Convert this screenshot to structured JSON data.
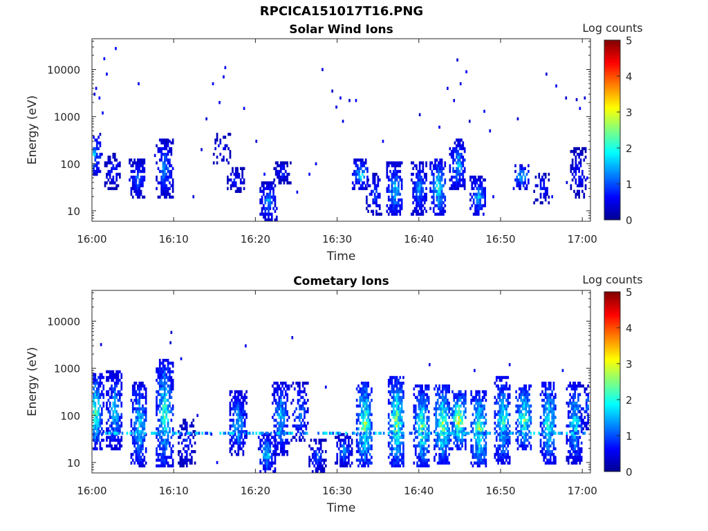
{
  "figure": {
    "title": "RPCICA151017T16.PNG"
  },
  "colormap": {
    "name": "jet",
    "stops": [
      "#00008f",
      "#0000ff",
      "#0080ff",
      "#00ffff",
      "#80ff80",
      "#ffff00",
      "#ff8000",
      "#ff0000",
      "#800000"
    ]
  },
  "chart_data": [
    {
      "type": "heatmap",
      "title": "Solar Wind Ions",
      "xlabel": "Time",
      "ylabel": "Energy (eV)",
      "x_tick_labels": [
        "16:00",
        "16:10",
        "16:20",
        "16:30",
        "16:40",
        "16:50",
        "17:00"
      ],
      "x_ticks_minutes": [
        0,
        10,
        20,
        30,
        40,
        50,
        60
      ],
      "xlim_minutes": [
        0,
        61
      ],
      "y_scale": "log",
      "y_tick_values": [
        10,
        100,
        1000,
        10000
      ],
      "y_tick_labels": [
        "10",
        "100",
        "1000",
        "10000"
      ],
      "ylim": [
        6,
        45000
      ],
      "colorbar": {
        "label": "Log counts",
        "range": [
          0,
          5
        ],
        "ticks": [
          0,
          1,
          2,
          3,
          4,
          5
        ],
        "tick_labels": [
          "0",
          "1",
          "2",
          "3",
          "4",
          "5"
        ]
      },
      "clusters": [
        {
          "t": 0.1,
          "e_low": 60,
          "e_high": 400,
          "peak": 1.8,
          "density": 0.7
        },
        {
          "t": 2.5,
          "e_low": 30,
          "e_high": 150,
          "peak": 1.0,
          "density": 0.7
        },
        {
          "t": 5.5,
          "e_low": 20,
          "e_high": 120,
          "peak": 1.4,
          "density": 0.85
        },
        {
          "t": 8.8,
          "e_low": 20,
          "e_high": 300,
          "peak": 1.6,
          "density": 0.85
        },
        {
          "t": 15.8,
          "e_low": 100,
          "e_high": 400,
          "peak": 0.9,
          "density": 0.4
        },
        {
          "t": 17.5,
          "e_low": 25,
          "e_high": 80,
          "peak": 1.0,
          "density": 0.7
        },
        {
          "t": 21.5,
          "e_low": 6,
          "e_high": 40,
          "peak": 1.6,
          "density": 0.9
        },
        {
          "t": 23.2,
          "e_low": 40,
          "e_high": 110,
          "peak": 1.0,
          "density": 0.8
        },
        {
          "t": 32.8,
          "e_low": 30,
          "e_high": 120,
          "peak": 2.0,
          "density": 0.8
        },
        {
          "t": 34.5,
          "e_low": 8,
          "e_high": 60,
          "peak": 1.2,
          "density": 0.6
        },
        {
          "t": 37.0,
          "e_low": 8,
          "e_high": 100,
          "peak": 1.9,
          "density": 0.9
        },
        {
          "t": 40.0,
          "e_low": 8,
          "e_high": 110,
          "peak": 1.5,
          "density": 0.9
        },
        {
          "t": 42.3,
          "e_low": 8,
          "e_high": 120,
          "peak": 2.2,
          "density": 0.9
        },
        {
          "t": 44.7,
          "e_low": 30,
          "e_high": 300,
          "peak": 1.9,
          "density": 0.9
        },
        {
          "t": 47.2,
          "e_low": 8,
          "e_high": 50,
          "peak": 1.8,
          "density": 0.9
        },
        {
          "t": 52.5,
          "e_low": 30,
          "e_high": 90,
          "peak": 2.0,
          "density": 0.8
        },
        {
          "t": 55.0,
          "e_low": 15,
          "e_high": 60,
          "peak": 1.0,
          "density": 0.5
        },
        {
          "t": 59.5,
          "e_low": 20,
          "e_high": 200,
          "peak": 1.0,
          "density": 0.6
        }
      ],
      "scatter": [
        {
          "t": 0.2,
          "e": 3000
        },
        {
          "t": 0.4,
          "e": 4000
        },
        {
          "t": 0.8,
          "e": 2500
        },
        {
          "t": 1.4,
          "e": 17000
        },
        {
          "t": 1.7,
          "e": 8000
        },
        {
          "t": 2.8,
          "e": 28000
        },
        {
          "t": 1.2,
          "e": 1200
        },
        {
          "t": 5.6,
          "e": 5000
        },
        {
          "t": 14.7,
          "e": 5000
        },
        {
          "t": 16.0,
          "e": 7000
        },
        {
          "t": 16.2,
          "e": 11000
        },
        {
          "t": 15.5,
          "e": 2000
        },
        {
          "t": 18.5,
          "e": 1500
        },
        {
          "t": 28.1,
          "e": 10000
        },
        {
          "t": 29.3,
          "e": 3500
        },
        {
          "t": 30.3,
          "e": 2500
        },
        {
          "t": 31.4,
          "e": 2200
        },
        {
          "t": 32.2,
          "e": 2200
        },
        {
          "t": 29.8,
          "e": 1600
        },
        {
          "t": 30.6,
          "e": 800
        },
        {
          "t": 40.0,
          "e": 1100
        },
        {
          "t": 43.4,
          "e": 4000
        },
        {
          "t": 44.6,
          "e": 16000
        },
        {
          "t": 45.7,
          "e": 9000
        },
        {
          "t": 44.2,
          "e": 2200
        },
        {
          "t": 45.0,
          "e": 5000
        },
        {
          "t": 47.9,
          "e": 1300
        },
        {
          "t": 52.0,
          "e": 900
        },
        {
          "t": 55.5,
          "e": 8000
        },
        {
          "t": 56.7,
          "e": 4500
        },
        {
          "t": 57.9,
          "e": 2500
        },
        {
          "t": 59.2,
          "e": 2300
        },
        {
          "t": 60.2,
          "e": 2500
        },
        {
          "t": 59.6,
          "e": 1500
        },
        {
          "t": 48.6,
          "e": 500
        },
        {
          "t": 46.1,
          "e": 800
        },
        {
          "t": 42.4,
          "e": 600
        },
        {
          "t": 35.5,
          "e": 300
        },
        {
          "t": 25.0,
          "e": 25
        },
        {
          "t": 12.3,
          "e": 20
        },
        {
          "t": 13.9,
          "e": 900
        },
        {
          "t": 13.3,
          "e": 200
        },
        {
          "t": 9.4,
          "e": 300
        },
        {
          "t": 7.6,
          "e": 150
        },
        {
          "t": 20.0,
          "e": 300
        },
        {
          "t": 49.0,
          "e": 20
        },
        {
          "t": 52.2,
          "e": 30
        },
        {
          "t": 56.2,
          "e": 20
        },
        {
          "t": 58.0,
          "e": 40
        },
        {
          "t": 60.5,
          "e": 50
        },
        {
          "t": 3.1,
          "e": 100
        },
        {
          "t": 21.0,
          "e": 60
        },
        {
          "t": 26.5,
          "e": 60
        },
        {
          "t": 27.3,
          "e": 100
        }
      ]
    },
    {
      "type": "heatmap",
      "title": "Cometary Ions",
      "xlabel": "Time",
      "ylabel": "Energy (eV)",
      "x_tick_labels": [
        "16:00",
        "16:10",
        "16:20",
        "16:30",
        "16:40",
        "16:50",
        "17:00"
      ],
      "x_ticks_minutes": [
        0,
        10,
        20,
        30,
        40,
        50,
        60
      ],
      "xlim_minutes": [
        0,
        61
      ],
      "y_scale": "log",
      "y_tick_values": [
        10,
        100,
        1000,
        10000
      ],
      "y_tick_labels": [
        "10",
        "100",
        "1000",
        "10000"
      ],
      "ylim": [
        6,
        45000
      ],
      "colorbar": {
        "label": "Log counts",
        "range": [
          0,
          5
        ],
        "ticks": [
          0,
          1,
          2,
          3,
          4,
          5
        ],
        "tick_labels": [
          "0",
          "1",
          "2",
          "3",
          "4",
          "5"
        ]
      },
      "band": {
        "e": 42,
        "peak": 1.7
      },
      "clusters": [
        {
          "t": 0.3,
          "e_low": 20,
          "e_high": 700,
          "peak": 2.7,
          "density": 0.9
        },
        {
          "t": 2.7,
          "e_low": 20,
          "e_high": 800,
          "peak": 2.0,
          "density": 0.85
        },
        {
          "t": 5.7,
          "e_low": 8,
          "e_high": 500,
          "peak": 2.2,
          "density": 0.9
        },
        {
          "t": 8.8,
          "e_low": 8,
          "e_high": 1500,
          "peak": 2.6,
          "density": 0.9
        },
        {
          "t": 11.5,
          "e_low": 8,
          "e_high": 80,
          "peak": 1.0,
          "density": 0.6
        },
        {
          "t": 17.8,
          "e_low": 15,
          "e_high": 300,
          "peak": 2.0,
          "density": 0.85
        },
        {
          "t": 21.3,
          "e_low": 6,
          "e_high": 40,
          "peak": 2.1,
          "density": 0.9
        },
        {
          "t": 23.0,
          "e_low": 15,
          "e_high": 500,
          "peak": 2.0,
          "density": 0.85
        },
        {
          "t": 25.3,
          "e_low": 30,
          "e_high": 500,
          "peak": 1.6,
          "density": 0.7
        },
        {
          "t": 27.5,
          "e_low": 6,
          "e_high": 30,
          "peak": 1.3,
          "density": 0.8
        },
        {
          "t": 30.7,
          "e_low": 8,
          "e_high": 40,
          "peak": 1.5,
          "density": 0.85
        },
        {
          "t": 33.3,
          "e_low": 8,
          "e_high": 500,
          "peak": 3.0,
          "density": 0.95
        },
        {
          "t": 37.2,
          "e_low": 8,
          "e_high": 600,
          "peak": 3.0,
          "density": 0.95
        },
        {
          "t": 40.3,
          "e_low": 8,
          "e_high": 400,
          "peak": 2.8,
          "density": 0.95
        },
        {
          "t": 42.8,
          "e_low": 10,
          "e_high": 400,
          "peak": 3.1,
          "density": 0.95
        },
        {
          "t": 44.8,
          "e_low": 20,
          "e_high": 300,
          "peak": 3.3,
          "density": 0.9
        },
        {
          "t": 47.3,
          "e_low": 8,
          "e_high": 300,
          "peak": 3.0,
          "density": 0.95
        },
        {
          "t": 50.2,
          "e_low": 10,
          "e_high": 600,
          "peak": 2.5,
          "density": 0.9
        },
        {
          "t": 52.8,
          "e_low": 20,
          "e_high": 400,
          "peak": 2.9,
          "density": 0.9
        },
        {
          "t": 55.8,
          "e_low": 10,
          "e_high": 500,
          "peak": 2.6,
          "density": 0.9
        },
        {
          "t": 59.0,
          "e_low": 10,
          "e_high": 500,
          "peak": 2.2,
          "density": 0.9
        },
        {
          "t": 60.6,
          "e_low": 50,
          "e_high": 400,
          "peak": 1.5,
          "density": 0.7
        }
      ],
      "scatter": [
        {
          "t": 1.0,
          "e": 3200
        },
        {
          "t": 9.6,
          "e": 5800
        },
        {
          "t": 9.5,
          "e": 3500
        },
        {
          "t": 10.8,
          "e": 1600
        },
        {
          "t": 18.7,
          "e": 3000
        },
        {
          "t": 24.4,
          "e": 4500
        },
        {
          "t": 41.2,
          "e": 1200
        },
        {
          "t": 51.0,
          "e": 1200
        },
        {
          "t": 57.5,
          "e": 900
        },
        {
          "t": 46.7,
          "e": 900
        },
        {
          "t": 28.5,
          "e": 400
        },
        {
          "t": 14.5,
          "e": 40
        },
        {
          "t": 12.8,
          "e": 100
        },
        {
          "t": 15.2,
          "e": 10
        }
      ]
    }
  ]
}
